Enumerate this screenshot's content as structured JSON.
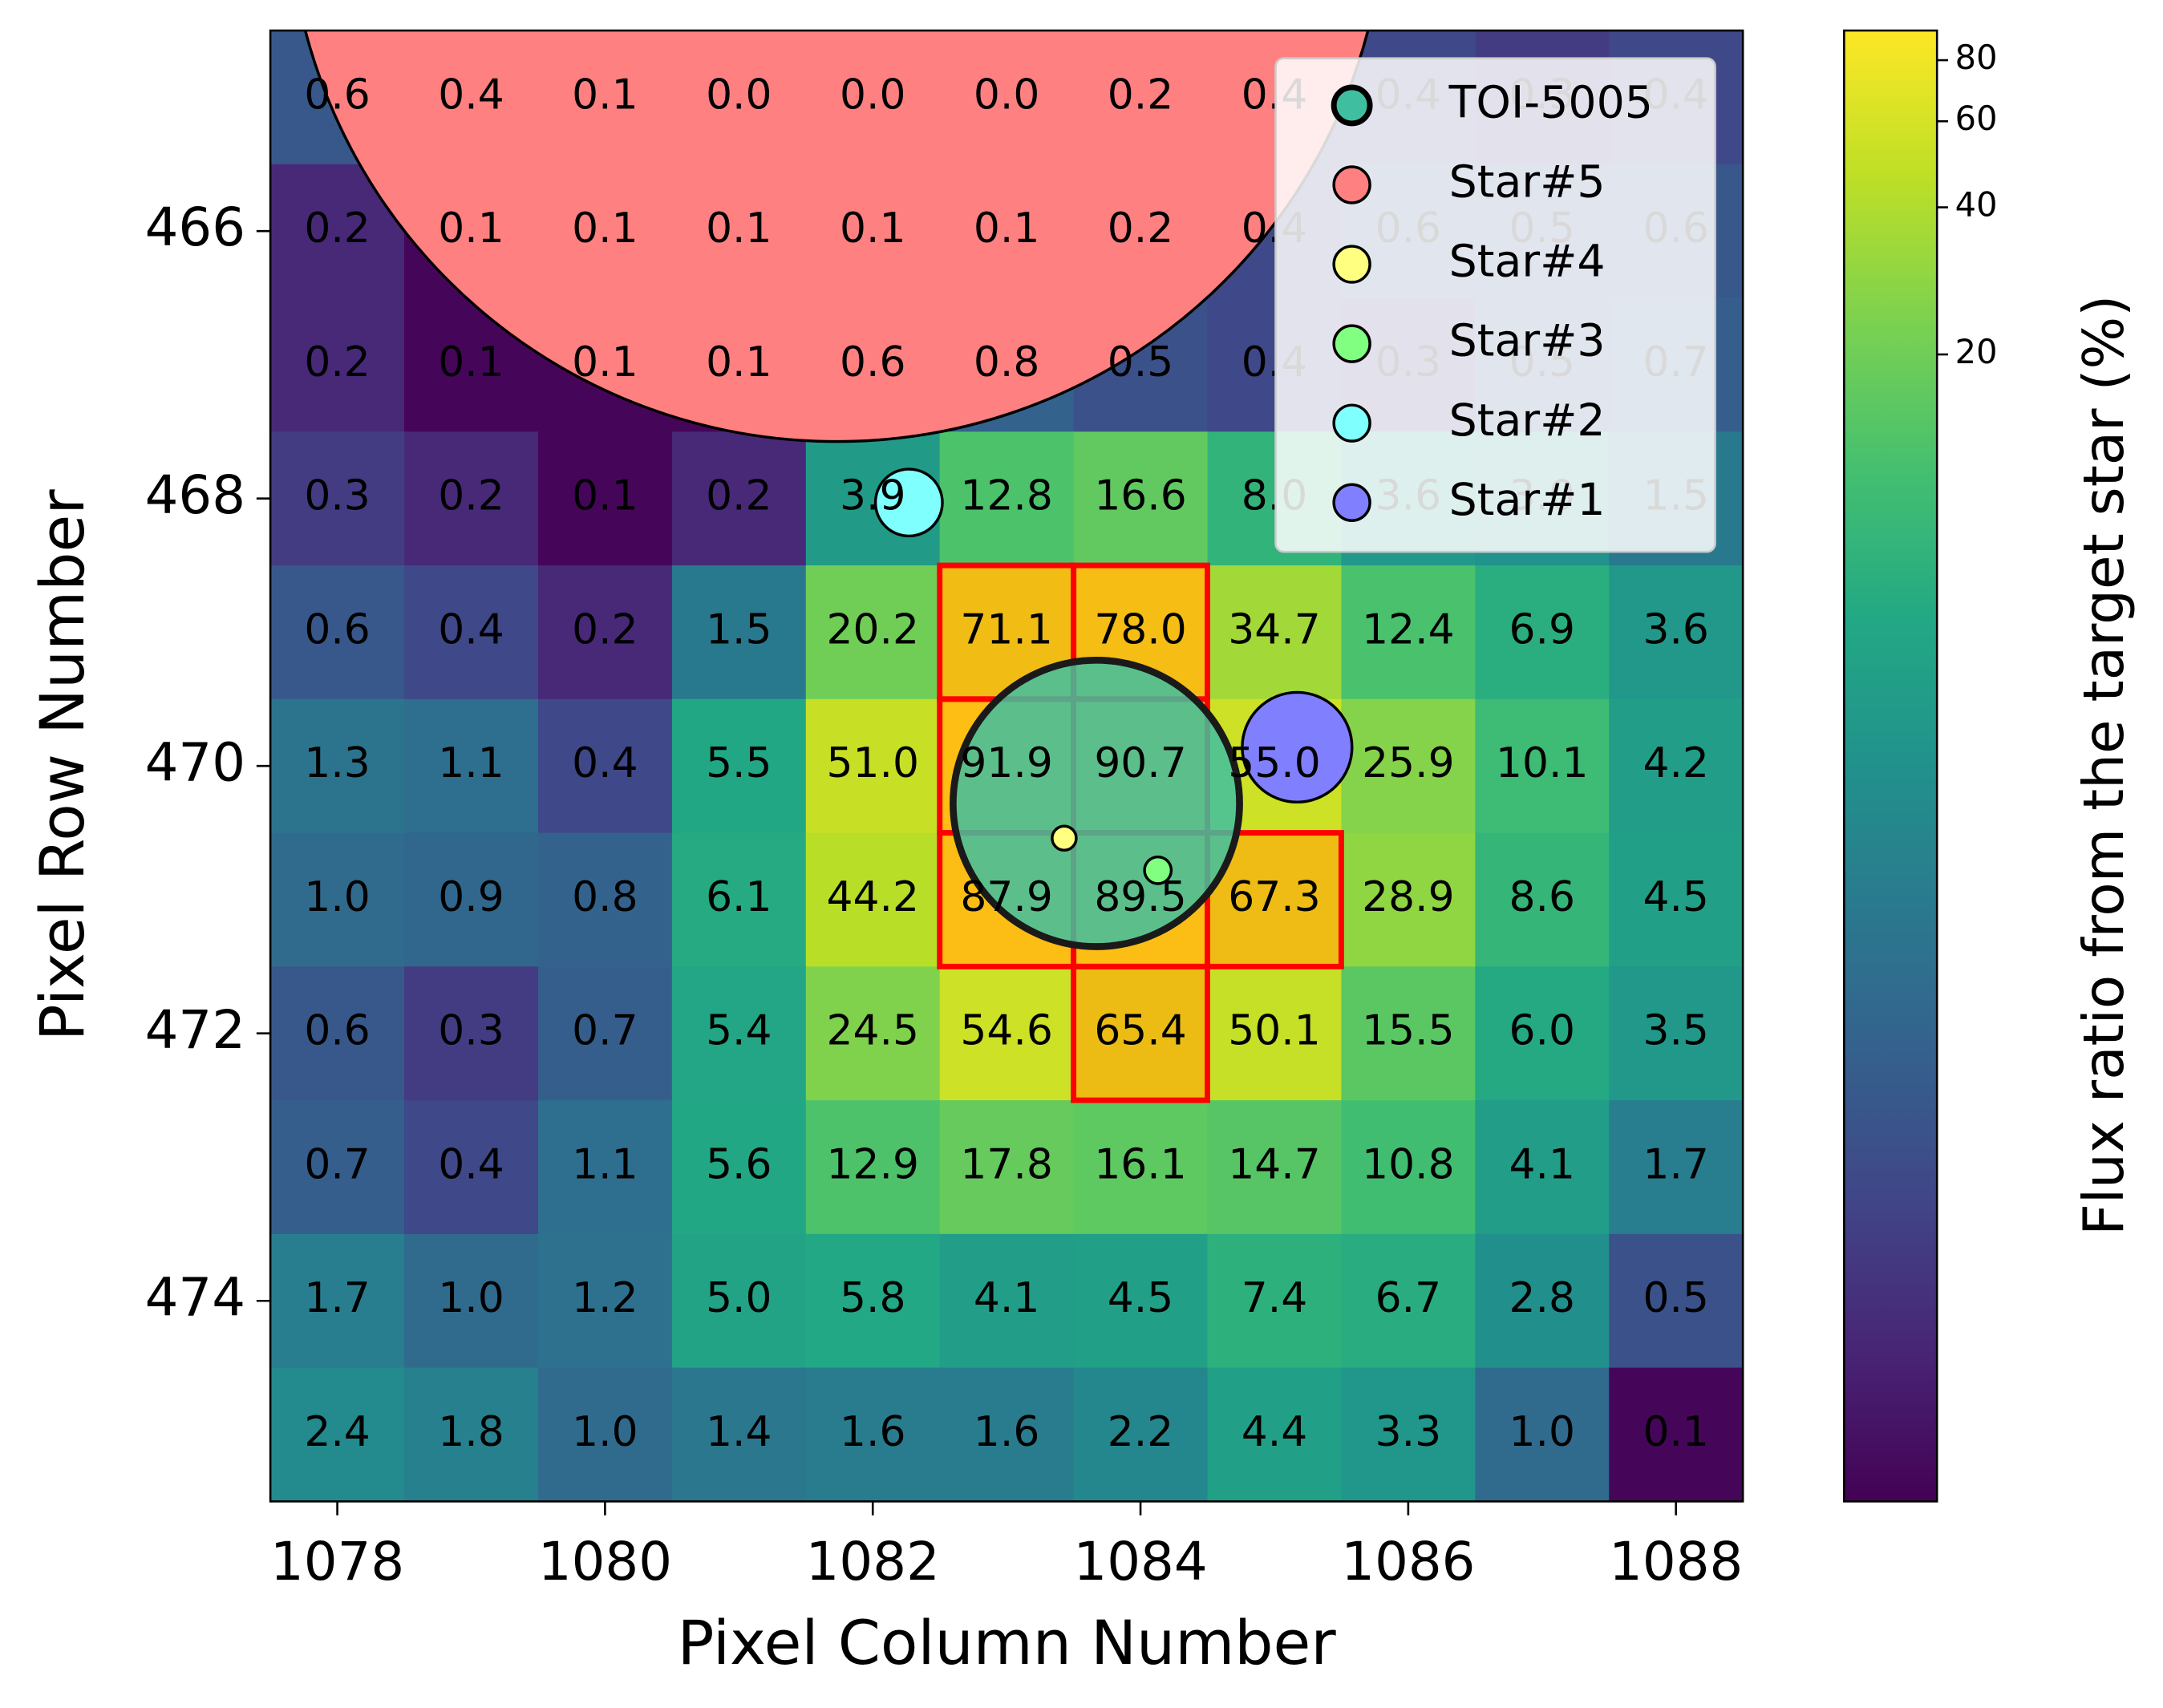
{
  "chart_data": {
    "type": "heatmap",
    "xlabel": "Pixel Column Number",
    "ylabel": "Pixel Row Number",
    "colorbar_label": "Flux ratio from the target star (%)",
    "x": [
      1078,
      1079,
      1080,
      1081,
      1082,
      1083,
      1084,
      1085,
      1086,
      1087,
      1088
    ],
    "y": [
      465,
      466,
      467,
      468,
      469,
      470,
      471,
      472,
      473,
      474,
      475
    ],
    "values": [
      [
        0.6,
        0.4,
        0.1,
        0.0,
        0.0,
        0.0,
        0.2,
        0.4,
        0.4,
        0.3,
        0.4
      ],
      [
        0.2,
        0.1,
        0.1,
        0.1,
        0.1,
        0.1,
        0.2,
        0.4,
        0.6,
        0.5,
        0.6
      ],
      [
        0.2,
        0.1,
        0.1,
        0.1,
        0.6,
        0.8,
        0.5,
        0.4,
        0.3,
        0.5,
        0.7
      ],
      [
        0.3,
        0.2,
        0.1,
        0.2,
        3.9,
        12.8,
        16.6,
        8.0,
        3.6,
        3.0,
        1.5
      ],
      [
        0.6,
        0.4,
        0.2,
        1.5,
        20.2,
        71.1,
        78.0,
        34.7,
        12.4,
        6.9,
        3.6
      ],
      [
        1.3,
        1.1,
        0.4,
        5.5,
        51.0,
        91.9,
        90.7,
        55.0,
        25.9,
        10.1,
        4.2
      ],
      [
        1.0,
        0.9,
        0.8,
        6.1,
        44.2,
        87.9,
        89.5,
        67.3,
        28.9,
        8.6,
        4.5
      ],
      [
        0.6,
        0.3,
        0.7,
        5.4,
        24.5,
        54.6,
        65.4,
        50.1,
        15.5,
        6.0,
        3.5
      ],
      [
        0.7,
        0.4,
        1.1,
        5.6,
        12.9,
        17.8,
        16.1,
        14.7,
        10.8,
        4.1,
        1.7
      ],
      [
        1.7,
        1.0,
        1.2,
        5.0,
        5.8,
        4.1,
        4.5,
        7.4,
        6.7,
        2.8,
        0.5
      ],
      [
        2.4,
        1.8,
        1.0,
        1.4,
        1.6,
        1.6,
        2.2,
        4.4,
        3.3,
        1.0,
        0.1
      ]
    ],
    "value_labels": [
      [
        "0.6",
        "0.4",
        "0.1",
        "0.0",
        "0.0",
        "0.0",
        "0.2",
        "0.4",
        "0.4",
        "0.3",
        "0.4"
      ],
      [
        "0.2",
        "0.1",
        "0.1",
        "0.1",
        "0.1",
        "0.1",
        "0.2",
        "0.4",
        "0.6",
        "0.5",
        "0.6"
      ],
      [
        "0.2",
        "0.1",
        "0.1",
        "0.1",
        "0.6",
        "0.8",
        "0.5",
        "0.4",
        "0.3",
        "0.5",
        "0.7"
      ],
      [
        "0.3",
        "0.2",
        "0.1",
        "0.2",
        "3.9",
        "12.8",
        "16.6",
        "8.0",
        "3.6",
        "3.0",
        "1.5"
      ],
      [
        "0.6",
        "0.4",
        "0.2",
        "1.5",
        "20.2",
        "71.1",
        "78.0",
        "34.7",
        "12.4",
        "6.9",
        "3.6"
      ],
      [
        "1.3",
        "1.1",
        "0.4",
        "5.5",
        "51.0",
        "91.9",
        "90.7",
        "55.0",
        "25.9",
        "10.1",
        "4.2"
      ],
      [
        "1.0",
        "0.9",
        "0.8",
        "6.1",
        "44.2",
        "87.9",
        "89.5",
        "67.3",
        "28.9",
        "8.6",
        "4.5"
      ],
      [
        "0.6",
        "0.3",
        "0.7",
        "5.4",
        "24.5",
        "54.6",
        "65.4",
        "50.1",
        "15.5",
        "6.0",
        "3.5"
      ],
      [
        "0.7",
        "0.4",
        "1.1",
        "5.6",
        "12.9",
        "17.8",
        "16.1",
        "14.7",
        "10.8",
        "4.1",
        "1.7"
      ],
      [
        "1.7",
        "1.0",
        "1.2",
        "5.0",
        "5.8",
        "4.1",
        "4.5",
        "7.4",
        "6.7",
        "2.8",
        "0.5"
      ],
      [
        "2.4",
        "1.8",
        "1.0",
        "1.4",
        "1.6",
        "1.6",
        "2.2",
        "4.4",
        "3.3",
        "1.0",
        "0.1"
      ]
    ],
    "color_scale": "log",
    "colormap": "viridis",
    "clim": [
      0.09,
      92
    ],
    "colorbar_ticks": [
      20,
      40,
      60,
      80
    ],
    "xlim": [
      1077.5,
      1088.5
    ],
    "ylim": [
      464.5,
      475.5
    ],
    "y_inverted": true,
    "xticks": [
      1078,
      1080,
      1082,
      1084,
      1086,
      1088
    ],
    "yticks": [
      466,
      468,
      470,
      472,
      474
    ],
    "aperture": {
      "color": "#ff0000",
      "pixels": [
        [
          1083,
          469
        ],
        [
          1084,
          469
        ],
        [
          1083,
          470
        ],
        [
          1084,
          470
        ],
        [
          1083,
          471
        ],
        [
          1084,
          471
        ],
        [
          1085,
          471
        ],
        [
          1084,
          472
        ]
      ]
    },
    "legend": "upper right",
    "series": [
      {
        "name": "TOI-5005",
        "color": "#40bfa0",
        "x": [
          1083.67
        ],
        "y": [
          470.28
        ],
        "size": [
          1.07
        ]
      },
      {
        "name": "Star#5",
        "color": "#ff8080",
        "x": [
          1081.73
        ],
        "y": [
          463.47
        ],
        "size": [
          4.1
        ]
      },
      {
        "name": "Star#4",
        "color": "#ffff80",
        "x": [
          1083.43
        ],
        "y": [
          470.54
        ],
        "size": [
          0.09
        ]
      },
      {
        "name": "Star#3",
        "color": "#80ff80",
        "x": [
          1084.13
        ],
        "y": [
          470.78
        ],
        "size": [
          0.1
        ]
      },
      {
        "name": "Star#2",
        "color": "#80ffff",
        "x": [
          1082.27
        ],
        "y": [
          468.03
        ],
        "size": [
          0.25
        ]
      },
      {
        "name": "Star#1",
        "color": "#8080ff",
        "x": [
          1085.17
        ],
        "y": [
          469.86
        ],
        "size": [
          0.41
        ]
      }
    ]
  }
}
